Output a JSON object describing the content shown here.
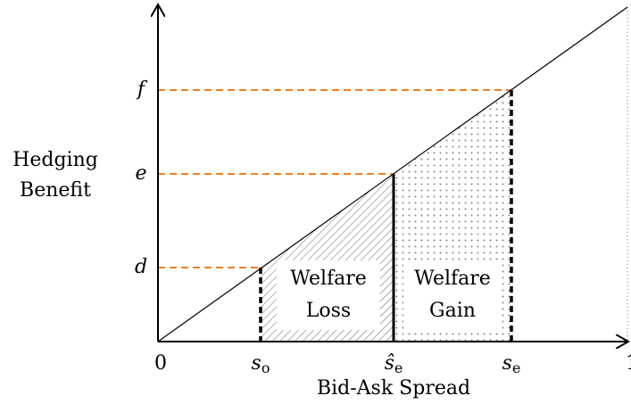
{
  "axes": {
    "y_label": [
      "Hedging",
      "Benefit"
    ],
    "x_label": "Bid-Ask Spread",
    "origin": "0",
    "x_end": "1"
  },
  "y_marks": [
    "d",
    "e",
    "f"
  ],
  "x_marks": [
    {
      "main": "s",
      "sub": "o"
    },
    {
      "main": "ŝ",
      "sub": "e"
    },
    {
      "main": "s",
      "sub": "e"
    }
  ],
  "regions": [
    {
      "label": [
        "Welfare",
        "Loss"
      ]
    },
    {
      "label": [
        "Welfare",
        "Gain"
      ]
    }
  ]
}
